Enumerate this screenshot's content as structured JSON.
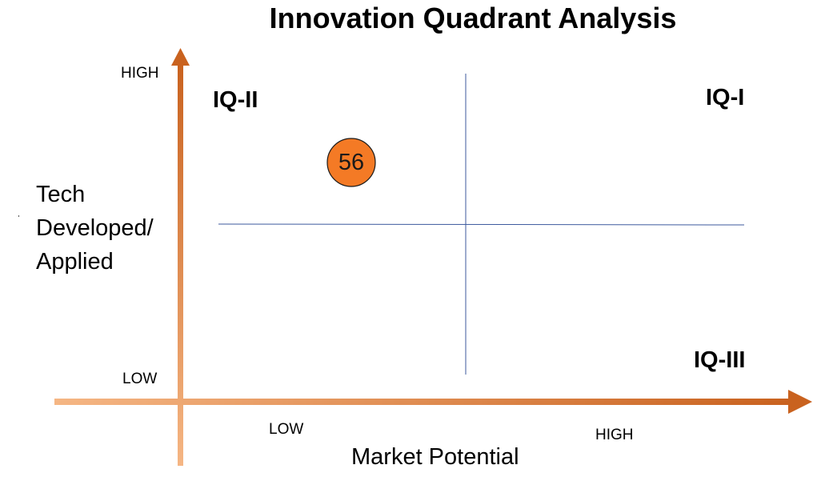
{
  "title": "Innovation Quadrant Analysis",
  "y_axis": {
    "label": "Tech\nDeveloped/\nApplied",
    "high_label": "HIGH",
    "low_label": "LOW"
  },
  "x_axis": {
    "label": "Market Potential",
    "low_label": "LOW",
    "high_label": "HIGH"
  },
  "quadrants": {
    "q1": "IQ-I",
    "q2": "IQ-II",
    "q3": "IQ-III"
  },
  "markers": [
    {
      "label": "56",
      "color": "#f47a25"
    }
  ],
  "colors": {
    "axis_light": "#f5b684",
    "axis_dark": "#c9621f",
    "divider": "#3d5a9e",
    "marker_fill": "#f47a25"
  }
}
